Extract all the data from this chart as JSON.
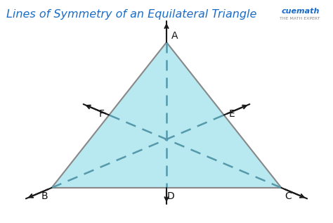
{
  "title": "Lines of Symmetry of an Equilateral Triangle",
  "title_color": "#1a6cc7",
  "title_fontsize": 11.5,
  "bg_color": "#ffffff",
  "triangle_fill": "#b8e8f0",
  "triangle_edge": "#888888",
  "triangle_lw": 1.5,
  "dashed_color": "#5599aa",
  "dashed_lw": 1.8,
  "arrow_color": "#1a1a1a",
  "point_fontsize": 10,
  "point_color": "#111111",
  "cuemath_color": "#1a6cc7",
  "cuemath_sub_color": "#888888",
  "vertex_A": [
    0.5,
    0.82
  ],
  "vertex_B": [
    0.155,
    0.2
  ],
  "vertex_C": [
    0.845,
    0.2
  ],
  "mid_BC_D": [
    0.5,
    0.2
  ],
  "mid_AC_E": [
    0.6725,
    0.51
  ],
  "mid_AB_F": [
    0.3275,
    0.51
  ],
  "centroid": [
    0.5,
    0.407
  ],
  "arrow_ext": 0.085,
  "arrow_lw": 1.5,
  "arrow_ms": 9,
  "xlim": [
    0.0,
    1.0
  ],
  "ylim": [
    0.05,
    1.0
  ]
}
